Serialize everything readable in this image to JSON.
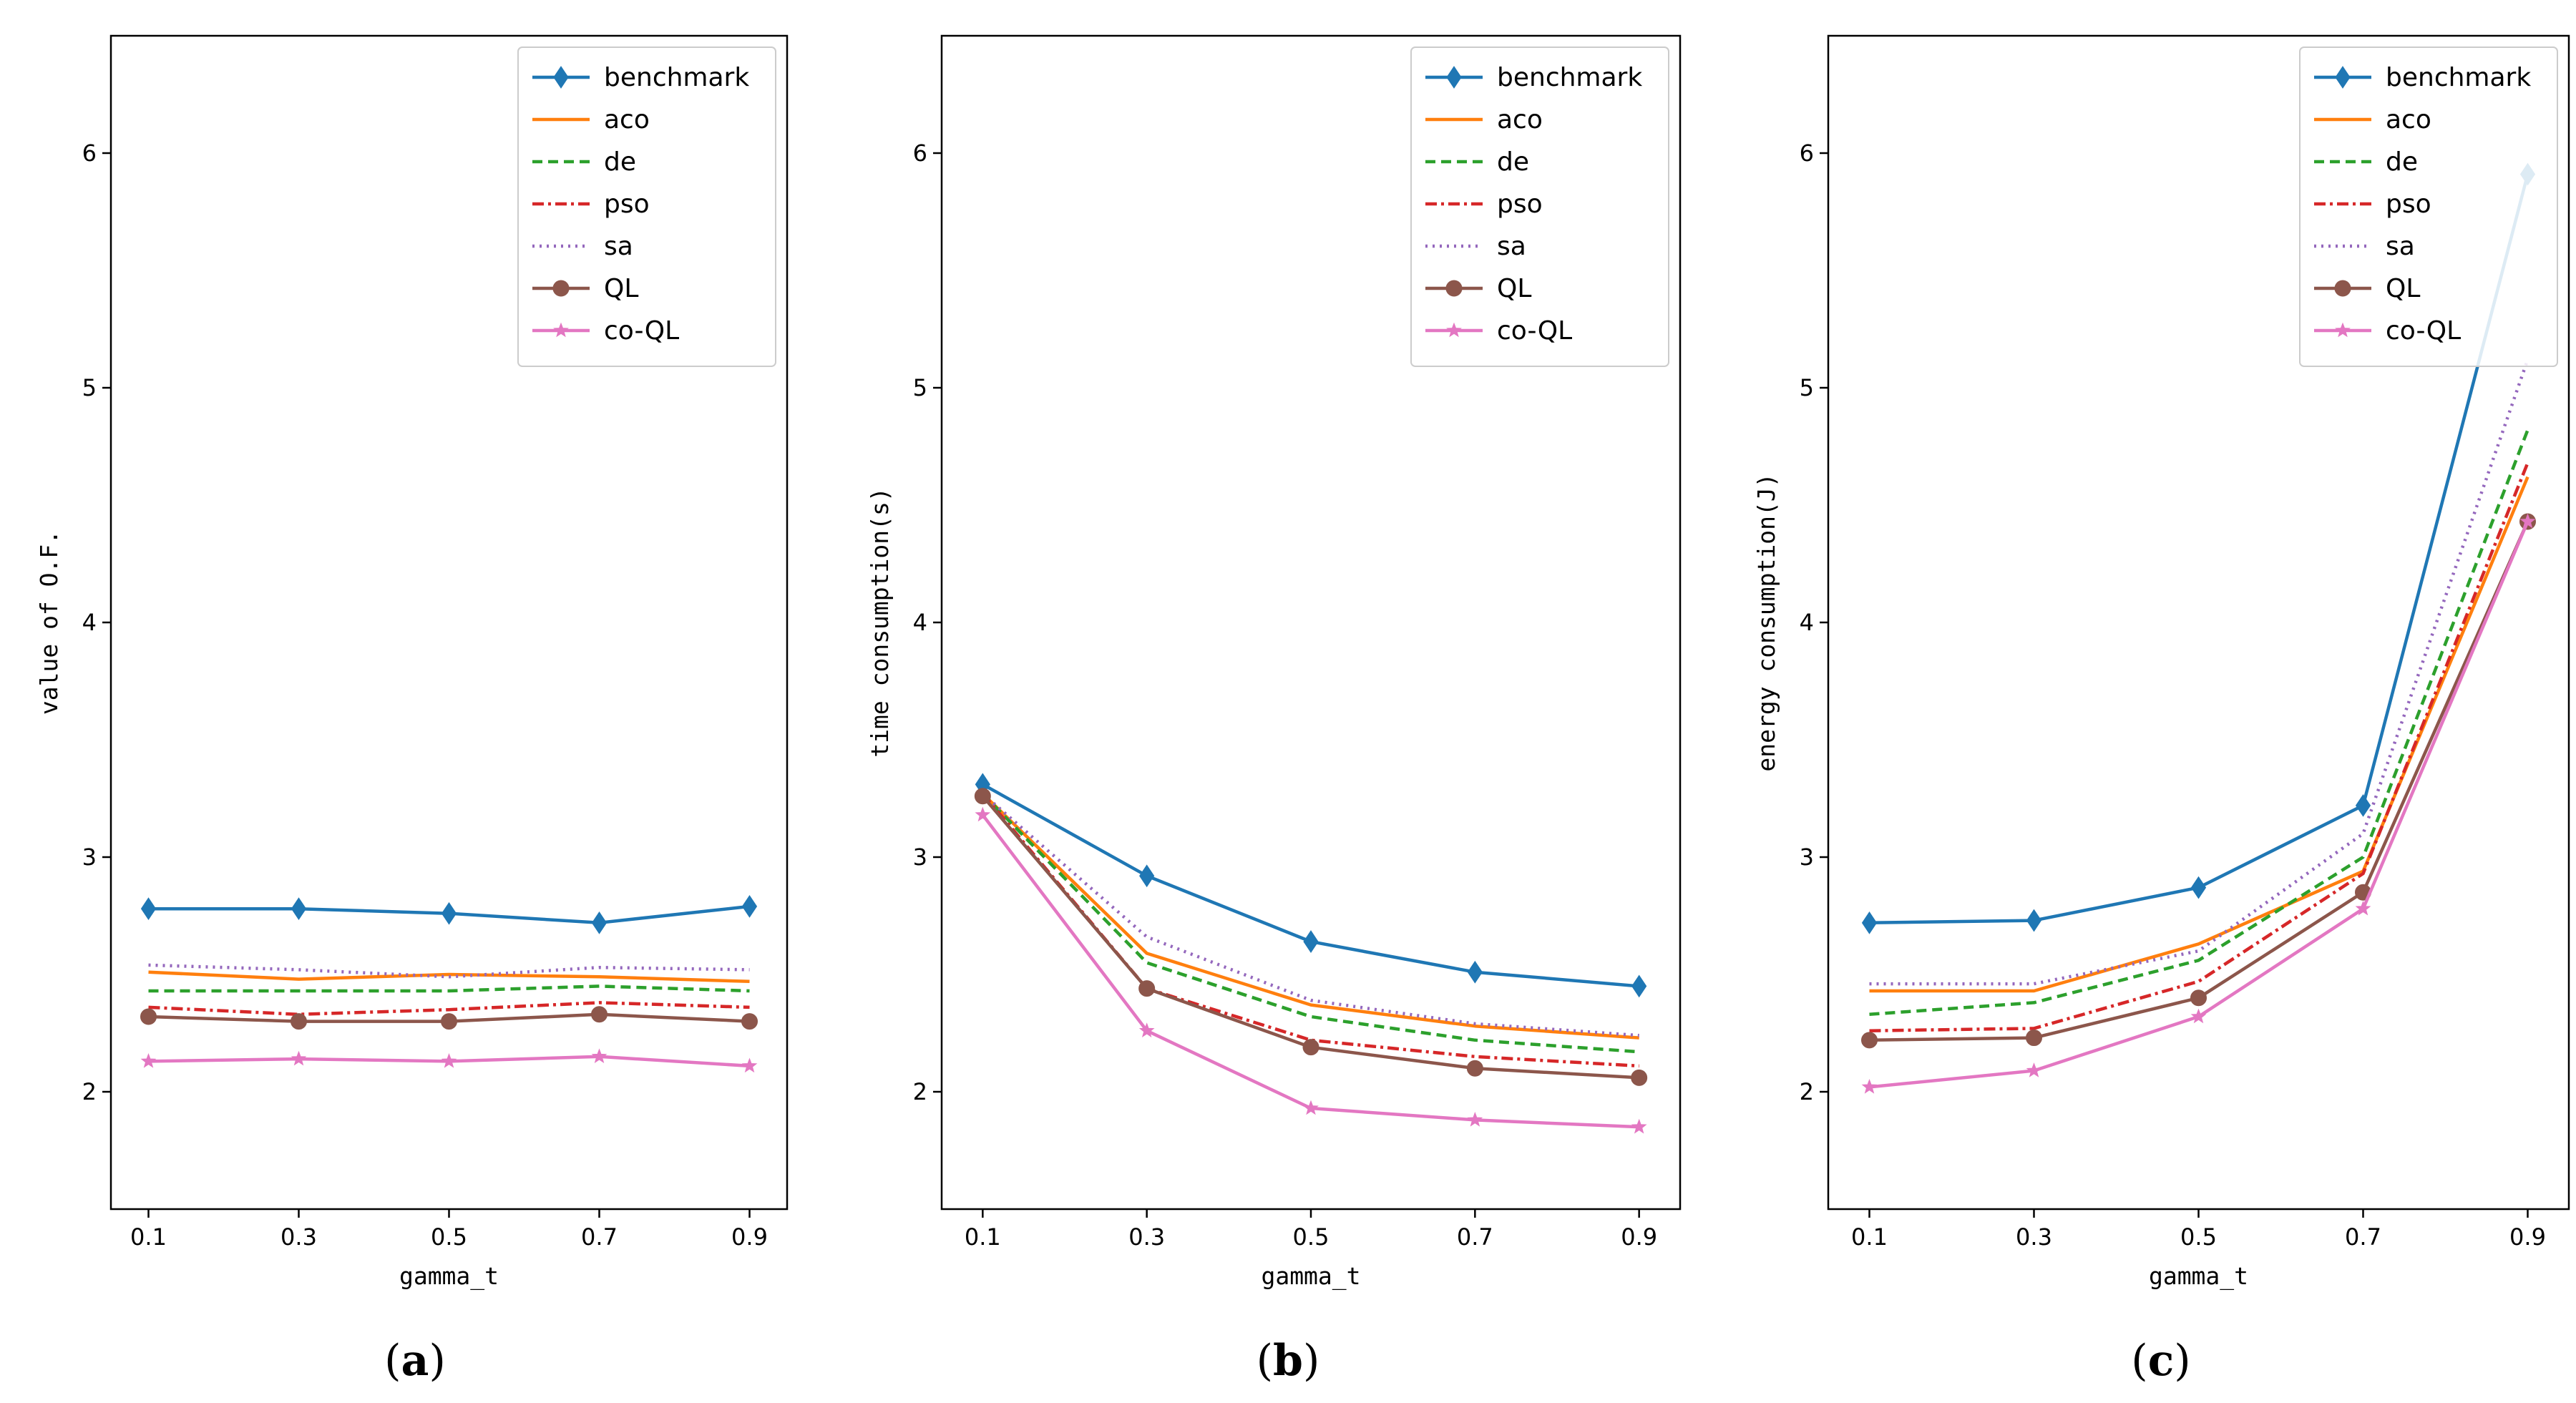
{
  "chart_data": [
    {
      "type": "line",
      "panel_label": "a",
      "xlabel": "gamma_t",
      "ylabel": "value of O.F.",
      "x": [
        0.1,
        0.3,
        0.5,
        0.7,
        0.9
      ],
      "x_tick_labels": [
        "0.1",
        "0.3",
        "0.5",
        "0.7",
        "0.9"
      ],
      "xlim": [
        0.05,
        0.95
      ],
      "ylim": [
        1.5,
        6.5
      ],
      "y_ticks": [
        2,
        3,
        4,
        5,
        6
      ],
      "y_tick_labels": [
        "2",
        "3",
        "4",
        "5",
        "6"
      ],
      "grid": false,
      "legend_position": "top-right",
      "series": [
        {
          "name": "benchmark",
          "values": [
            2.78,
            2.78,
            2.76,
            2.72,
            2.79
          ]
        },
        {
          "name": "aco",
          "values": [
            2.51,
            2.48,
            2.5,
            2.49,
            2.47
          ]
        },
        {
          "name": "de",
          "values": [
            2.43,
            2.43,
            2.43,
            2.45,
            2.43
          ]
        },
        {
          "name": "pso",
          "values": [
            2.36,
            2.33,
            2.35,
            2.38,
            2.36
          ]
        },
        {
          "name": "sa",
          "values": [
            2.54,
            2.52,
            2.49,
            2.53,
            2.52
          ]
        },
        {
          "name": "QL",
          "values": [
            2.32,
            2.3,
            2.3,
            2.33,
            2.3
          ]
        },
        {
          "name": "co-QL",
          "values": [
            2.13,
            2.14,
            2.13,
            2.15,
            2.11
          ]
        }
      ]
    },
    {
      "type": "line",
      "panel_label": "b",
      "xlabel": "gamma_t",
      "ylabel": "time consumption(s)",
      "x": [
        0.1,
        0.3,
        0.5,
        0.7,
        0.9
      ],
      "x_tick_labels": [
        "0.1",
        "0.3",
        "0.5",
        "0.7",
        "0.9"
      ],
      "xlim": [
        0.05,
        0.95
      ],
      "ylim": [
        1.5,
        6.5
      ],
      "y_ticks": [
        2,
        3,
        4,
        5,
        6
      ],
      "y_tick_labels": [
        "2",
        "3",
        "4",
        "5",
        "6"
      ],
      "grid": false,
      "legend_position": "top-right",
      "series": [
        {
          "name": "benchmark",
          "values": [
            3.31,
            2.92,
            2.64,
            2.51,
            2.45
          ]
        },
        {
          "name": "aco",
          "values": [
            3.27,
            2.59,
            2.37,
            2.28,
            2.23
          ]
        },
        {
          "name": "de",
          "values": [
            3.27,
            2.55,
            2.32,
            2.22,
            2.17
          ]
        },
        {
          "name": "pso",
          "values": [
            3.27,
            2.44,
            2.22,
            2.15,
            2.11
          ]
        },
        {
          "name": "sa",
          "values": [
            3.27,
            2.66,
            2.39,
            2.29,
            2.24
          ]
        },
        {
          "name": "QL",
          "values": [
            3.26,
            2.44,
            2.19,
            2.1,
            2.06
          ]
        },
        {
          "name": "co-QL",
          "values": [
            3.18,
            2.26,
            1.93,
            1.88,
            1.85
          ]
        }
      ]
    },
    {
      "type": "line",
      "panel_label": "c",
      "xlabel": "gamma_t",
      "ylabel": "energy consumption(J)",
      "x": [
        0.1,
        0.3,
        0.5,
        0.7,
        0.9
      ],
      "x_tick_labels": [
        "0.1",
        "0.3",
        "0.5",
        "0.7",
        "0.9"
      ],
      "xlim": [
        0.05,
        0.95
      ],
      "ylim": [
        1.5,
        6.5
      ],
      "y_ticks": [
        2,
        3,
        4,
        5,
        6
      ],
      "y_tick_labels": [
        "2",
        "3",
        "4",
        "5",
        "6"
      ],
      "grid": false,
      "legend_position": "top-right",
      "series": [
        {
          "name": "benchmark",
          "values": [
            2.72,
            2.73,
            2.87,
            3.22,
            5.91
          ]
        },
        {
          "name": "aco",
          "values": [
            2.43,
            2.43,
            2.63,
            2.94,
            4.62
          ]
        },
        {
          "name": "de",
          "values": [
            2.33,
            2.38,
            2.56,
            3.0,
            4.82
          ]
        },
        {
          "name": "pso",
          "values": [
            2.26,
            2.27,
            2.47,
            2.93,
            4.68
          ]
        },
        {
          "name": "sa",
          "values": [
            2.46,
            2.46,
            2.6,
            3.1,
            5.12
          ]
        },
        {
          "name": "QL",
          "values": [
            2.22,
            2.23,
            2.4,
            2.85,
            4.43
          ]
        },
        {
          "name": "co-QL",
          "values": [
            2.02,
            2.09,
            2.32,
            2.78,
            4.43
          ]
        }
      ]
    }
  ],
  "series_styles": [
    {
      "color": "#1f77b4",
      "dash": "",
      "marker": "diamond"
    },
    {
      "color": "#ff7f0e",
      "dash": "",
      "marker": "none"
    },
    {
      "color": "#2ca02c",
      "dash": "14,8",
      "marker": "none"
    },
    {
      "color": "#d62728",
      "dash": "16,6,4,6",
      "marker": "none"
    },
    {
      "color": "#9467bd",
      "dash": "3,7",
      "marker": "none"
    },
    {
      "color": "#8c564b",
      "dash": "",
      "marker": "circle"
    },
    {
      "color": "#e377c2",
      "dash": "",
      "marker": "star"
    }
  ]
}
